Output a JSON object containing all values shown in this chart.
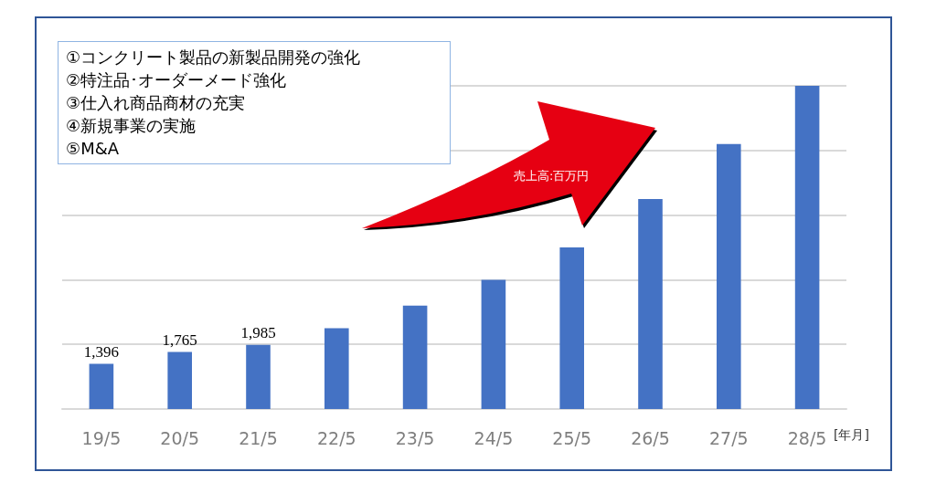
{
  "chart_data": {
    "type": "bar",
    "categories": [
      "19/5",
      "20/5",
      "21/5",
      "22/5",
      "23/5",
      "24/5",
      "25/5",
      "26/5",
      "27/5",
      "28/5"
    ],
    "values": [
      1396,
      1765,
      1985,
      2500,
      3200,
      4000,
      5000,
      6500,
      8200,
      10000
    ],
    "value_labels": [
      "1,396",
      "1,765",
      "1,985",
      null,
      null,
      null,
      null,
      null,
      null,
      null
    ],
    "color": "#4472c4",
    "ylabel": "売上高:百万円",
    "xlabel": "[年月]",
    "ylim": [
      0,
      10000
    ],
    "yticks": [
      {
        "value": 0,
        "label": null
      },
      {
        "value": 2000,
        "label": null
      },
      {
        "value": 4000,
        "label": null
      },
      {
        "value": 6000,
        "label": null
      },
      {
        "value": 8000,
        "label": null
      },
      {
        "value": 10000,
        "label": null
      }
    ],
    "tick_labels": "x",
    "grid": "y",
    "annotations": [
      "①コンクリート製品の新製品開発の強化",
      "②特注品･オーダーメード強化",
      "③仕入れ商品商材の充実",
      "④新規事業の実施",
      "⑤M&A"
    ]
  }
}
